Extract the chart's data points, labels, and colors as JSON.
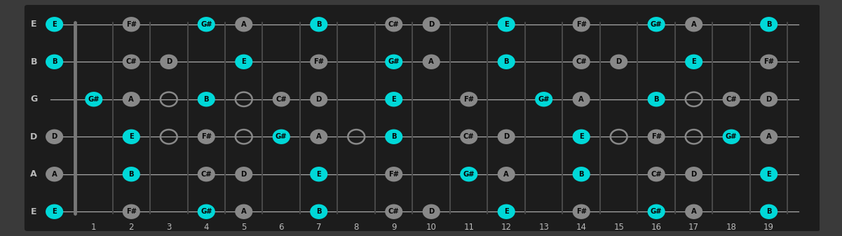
{
  "bg_color": "#3a3a3a",
  "fretboard_color": "#1c1c1c",
  "fret_bar_color": "#4a4a4a",
  "nut_color": "#888888",
  "string_color": "#aaaaaa",
  "cyan": "#00d8d8",
  "gray": "#888888",
  "text_dark": "#080808",
  "text_light": "#bbbbbb",
  "num_frets": 19,
  "string_names": [
    "E",
    "B",
    "G",
    "D",
    "A",
    "E"
  ],
  "chord_tones": [
    "E",
    "G#",
    "B"
  ],
  "notes": [
    {
      "string": 0,
      "fret": 0,
      "note": "E"
    },
    {
      "string": 0,
      "fret": 2,
      "note": "F#"
    },
    {
      "string": 0,
      "fret": 4,
      "note": "G#"
    },
    {
      "string": 0,
      "fret": 5,
      "note": "A"
    },
    {
      "string": 0,
      "fret": 7,
      "note": "B"
    },
    {
      "string": 0,
      "fret": 9,
      "note": "C#"
    },
    {
      "string": 0,
      "fret": 10,
      "note": "D"
    },
    {
      "string": 0,
      "fret": 12,
      "note": "E"
    },
    {
      "string": 0,
      "fret": 14,
      "note": "F#"
    },
    {
      "string": 0,
      "fret": 16,
      "note": "G#"
    },
    {
      "string": 0,
      "fret": 17,
      "note": "A"
    },
    {
      "string": 0,
      "fret": 19,
      "note": "B"
    },
    {
      "string": 1,
      "fret": 0,
      "note": "B"
    },
    {
      "string": 1,
      "fret": 2,
      "note": "C#"
    },
    {
      "string": 1,
      "fret": 3,
      "note": "D"
    },
    {
      "string": 1,
      "fret": 5,
      "note": "E"
    },
    {
      "string": 1,
      "fret": 7,
      "note": "F#"
    },
    {
      "string": 1,
      "fret": 9,
      "note": "G#"
    },
    {
      "string": 1,
      "fret": 10,
      "note": "A"
    },
    {
      "string": 1,
      "fret": 12,
      "note": "B"
    },
    {
      "string": 1,
      "fret": 14,
      "note": "C#"
    },
    {
      "string": 1,
      "fret": 15,
      "note": "D"
    },
    {
      "string": 1,
      "fret": 17,
      "note": "E"
    },
    {
      "string": 1,
      "fret": 19,
      "note": "F#"
    },
    {
      "string": 2,
      "fret": 1,
      "note": "G#"
    },
    {
      "string": 2,
      "fret": 2,
      "note": "A"
    },
    {
      "string": 2,
      "fret": 4,
      "note": "B"
    },
    {
      "string": 2,
      "fret": 6,
      "note": "C#"
    },
    {
      "string": 2,
      "fret": 7,
      "note": "D"
    },
    {
      "string": 2,
      "fret": 9,
      "note": "E"
    },
    {
      "string": 2,
      "fret": 11,
      "note": "F#"
    },
    {
      "string": 2,
      "fret": 13,
      "note": "G#"
    },
    {
      "string": 2,
      "fret": 14,
      "note": "A"
    },
    {
      "string": 2,
      "fret": 16,
      "note": "B"
    },
    {
      "string": 2,
      "fret": 18,
      "note": "C#"
    },
    {
      "string": 2,
      "fret": 19,
      "note": "D"
    },
    {
      "string": 3,
      "fret": 0,
      "note": "D"
    },
    {
      "string": 3,
      "fret": 2,
      "note": "E"
    },
    {
      "string": 3,
      "fret": 4,
      "note": "F#"
    },
    {
      "string": 3,
      "fret": 6,
      "note": "G#"
    },
    {
      "string": 3,
      "fret": 7,
      "note": "A"
    },
    {
      "string": 3,
      "fret": 9,
      "note": "B"
    },
    {
      "string": 3,
      "fret": 11,
      "note": "C#"
    },
    {
      "string": 3,
      "fret": 12,
      "note": "D"
    },
    {
      "string": 3,
      "fret": 14,
      "note": "E"
    },
    {
      "string": 3,
      "fret": 16,
      "note": "F#"
    },
    {
      "string": 3,
      "fret": 18,
      "note": "G#"
    },
    {
      "string": 3,
      "fret": 19,
      "note": "A"
    },
    {
      "string": 4,
      "fret": 0,
      "note": "A"
    },
    {
      "string": 4,
      "fret": 2,
      "note": "B"
    },
    {
      "string": 4,
      "fret": 4,
      "note": "C#"
    },
    {
      "string": 4,
      "fret": 5,
      "note": "D"
    },
    {
      "string": 4,
      "fret": 7,
      "note": "E"
    },
    {
      "string": 4,
      "fret": 9,
      "note": "F#"
    },
    {
      "string": 4,
      "fret": 11,
      "note": "G#"
    },
    {
      "string": 4,
      "fret": 12,
      "note": "A"
    },
    {
      "string": 4,
      "fret": 14,
      "note": "B"
    },
    {
      "string": 4,
      "fret": 16,
      "note": "C#"
    },
    {
      "string": 4,
      "fret": 17,
      "note": "D"
    },
    {
      "string": 4,
      "fret": 19,
      "note": "E"
    },
    {
      "string": 5,
      "fret": 0,
      "note": "E"
    },
    {
      "string": 5,
      "fret": 2,
      "note": "F#"
    },
    {
      "string": 5,
      "fret": 4,
      "note": "G#"
    },
    {
      "string": 5,
      "fret": 5,
      "note": "A"
    },
    {
      "string": 5,
      "fret": 7,
      "note": "B"
    },
    {
      "string": 5,
      "fret": 9,
      "note": "C#"
    },
    {
      "string": 5,
      "fret": 10,
      "note": "D"
    },
    {
      "string": 5,
      "fret": 12,
      "note": "E"
    },
    {
      "string": 5,
      "fret": 14,
      "note": "F#"
    },
    {
      "string": 5,
      "fret": 16,
      "note": "G#"
    },
    {
      "string": 5,
      "fret": 17,
      "note": "A"
    },
    {
      "string": 5,
      "fret": 19,
      "note": "B"
    }
  ],
  "open_circles": [
    [
      2,
      3
    ],
    [
      2,
      5
    ],
    [
      3,
      3
    ],
    [
      3,
      5
    ],
    [
      3,
      8
    ],
    [
      3,
      15
    ],
    [
      3,
      17
    ],
    [
      2,
      17
    ]
  ]
}
